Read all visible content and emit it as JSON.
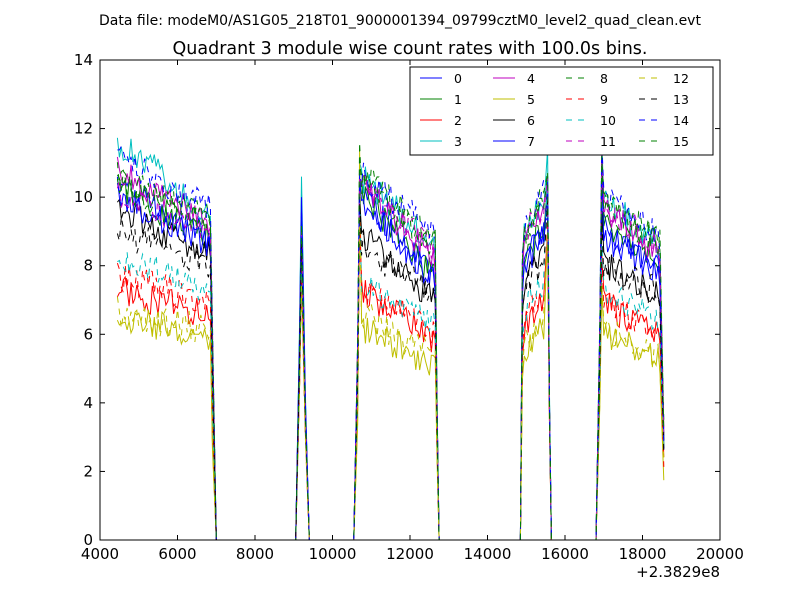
{
  "chart_data": {
    "type": "line",
    "suptitle": "Data file: modeM0/AS1G05_218T01_9000001394_09799cztM0_level2_quad_clean.evt",
    "title": "Quadrant 3 module wise count rates with 100.0s bins.",
    "xlabel": "",
    "ylabel": "",
    "x_offset_label": "+2.3829e8",
    "xlim": [
      4000,
      20000
    ],
    "ylim": [
      0,
      14
    ],
    "xticks": [
      4000,
      6000,
      8000,
      10000,
      12000,
      14000,
      16000,
      18000,
      20000
    ],
    "yticks": [
      0,
      2,
      4,
      6,
      8,
      10,
      12,
      14
    ],
    "grid": false,
    "legend_position": "top-right",
    "legend_columns": 4,
    "segments": [
      {
        "x_start": 4450,
        "x_end": 6850,
        "ramp_down_to": 7000
      },
      {
        "ramp_up_from": 9050,
        "peak_x": 9200,
        "ramp_down_to": 9400
      },
      {
        "ramp_up_from": 10550,
        "x_start": 10750,
        "x_end": 12650,
        "ramp_down_to": 12750
      },
      {
        "ramp_up_from": 14850,
        "x_start": 14950,
        "x_end": 15550,
        "ramp_down_to": 15650
      },
      {
        "ramp_up_from": 16800,
        "x_start": 16950,
        "x_end": 18550
      }
    ],
    "series": [
      {
        "name": "0",
        "color": "#0000ff",
        "dash": "solid",
        "levels": [
          10.6,
          9.3,
          8.0,
          10.1,
          8.6,
          7.6,
          8.0,
          9.2,
          10.0,
          9.1,
          8.1
        ]
      },
      {
        "name": "1",
        "color": "#008000",
        "dash": "solid",
        "levels": [
          10.5,
          9.2,
          7.9,
          10.1,
          8.7,
          7.7,
          8.1,
          9.3,
          10.2,
          9.2,
          8.3
        ]
      },
      {
        "name": "2",
        "color": "#ff0000",
        "dash": "solid",
        "levels": [
          7.5,
          6.5,
          5.3,
          7.3,
          6.4,
          5.8,
          6.2,
          7.0,
          7.6,
          6.9,
          6.2
        ]
      },
      {
        "name": "3",
        "color": "#00bfbf",
        "dash": "solid",
        "levels": [
          11.8,
          10.2,
          8.4,
          10.6,
          9.9,
          8.5,
          8.9,
          10.0,
          10.9,
          10.0,
          8.8
        ]
      },
      {
        "name": "4",
        "color": "#bf00bf",
        "dash": "solid",
        "levels": [
          10.9,
          9.8,
          8.2,
          10.3,
          9.3,
          8.2,
          8.6,
          9.7,
          10.6,
          9.6,
          8.5
        ]
      },
      {
        "name": "5",
        "color": "#bfbf00",
        "dash": "solid",
        "levels": [
          6.7,
          5.8,
          5.1,
          6.2,
          5.7,
          5.1,
          5.5,
          6.2,
          6.7,
          6.1,
          5.4
        ]
      },
      {
        "name": "6",
        "color": "#000000",
        "dash": "solid",
        "levels": [
          9.8,
          8.7,
          7.3,
          8.9,
          8.0,
          7.0,
          7.5,
          8.5,
          8.9,
          8.1,
          7.4
        ]
      },
      {
        "name": "7",
        "color": "#0000ff",
        "dash": "solid",
        "levels": [
          10.2,
          9.0,
          7.7,
          9.9,
          8.5,
          7.5,
          7.9,
          9.0,
          9.8,
          8.9,
          7.9
        ]
      },
      {
        "name": "8",
        "color": "#008000",
        "dash": "dashed",
        "levels": [
          10.7,
          9.9,
          8.6,
          10.7,
          9.9,
          8.7,
          9.0,
          10.0,
          10.5,
          9.9,
          9.0
        ]
      },
      {
        "name": "9",
        "color": "#ff0000",
        "dash": "dashed",
        "levels": [
          7.9,
          7.0,
          6.0,
          7.4,
          6.7,
          6.1,
          6.4,
          7.2,
          7.6,
          7.0,
          6.3
        ]
      },
      {
        "name": "10",
        "color": "#00bfbf",
        "dash": "dashed",
        "levels": [
          8.5,
          7.4,
          6.4,
          7.4,
          7.0,
          6.4,
          6.7,
          7.5,
          7.9,
          7.3,
          6.6
        ]
      },
      {
        "name": "11",
        "color": "#bf00bf",
        "dash": "dashed",
        "levels": [
          10.3,
          9.5,
          8.3,
          10.6,
          9.6,
          8.4,
          8.8,
          9.8,
          10.4,
          9.7,
          8.7
        ]
      },
      {
        "name": "12",
        "color": "#bfbf00",
        "dash": "dashed",
        "levels": [
          6.8,
          6.0,
          5.4,
          6.6,
          5.9,
          5.3,
          5.7,
          6.4,
          6.8,
          6.2,
          5.5
        ]
      },
      {
        "name": "13",
        "color": "#000000",
        "dash": "dashed",
        "levels": [
          9.2,
          8.3,
          7.2,
          8.6,
          7.9,
          7.1,
          7.4,
          8.2,
          8.6,
          8.0,
          7.4
        ]
      },
      {
        "name": "14",
        "color": "#0000ff",
        "dash": "dashed",
        "levels": [
          11.3,
          10.3,
          8.8,
          10.7,
          9.9,
          8.9,
          9.2,
          10.3,
          10.9,
          10.1,
          9.0
        ]
      },
      {
        "name": "15",
        "color": "#008000",
        "dash": "dashed",
        "levels": [
          10.6,
          9.6,
          8.4,
          10.5,
          9.8,
          8.6,
          8.9,
          9.9,
          10.5,
          9.8,
          8.8
        ]
      }
    ],
    "peaks": {
      "0": [
        10.1,
        10.2,
        10.0
      ],
      "1": [
        9.0,
        10.3,
        11.0
      ],
      "2": [
        7.7,
        9.3,
        9.6
      ],
      "3": [
        10.6,
        11.0,
        12.0
      ],
      "4": [
        9.6,
        10.3,
        11.0
      ],
      "5": [
        8.3,
        11.4,
        9.6
      ],
      "6": [
        9.3,
        10.0,
        10.8
      ],
      "7": [
        10.0,
        10.5,
        10.9
      ],
      "8": [
        8.6,
        10.9,
        11.3
      ],
      "9": [
        7.6,
        9.5,
        9.9
      ],
      "10": [
        8.0,
        10.0,
        11.3
      ],
      "11": [
        9.1,
        10.6,
        11.2
      ],
      "12": [
        7.4,
        9.4,
        9.6
      ],
      "13": [
        8.8,
        10.0,
        10.5
      ],
      "14": [
        9.8,
        10.7,
        11.1
      ],
      "15": [
        9.2,
        11.6,
        11.3
      ]
    }
  }
}
